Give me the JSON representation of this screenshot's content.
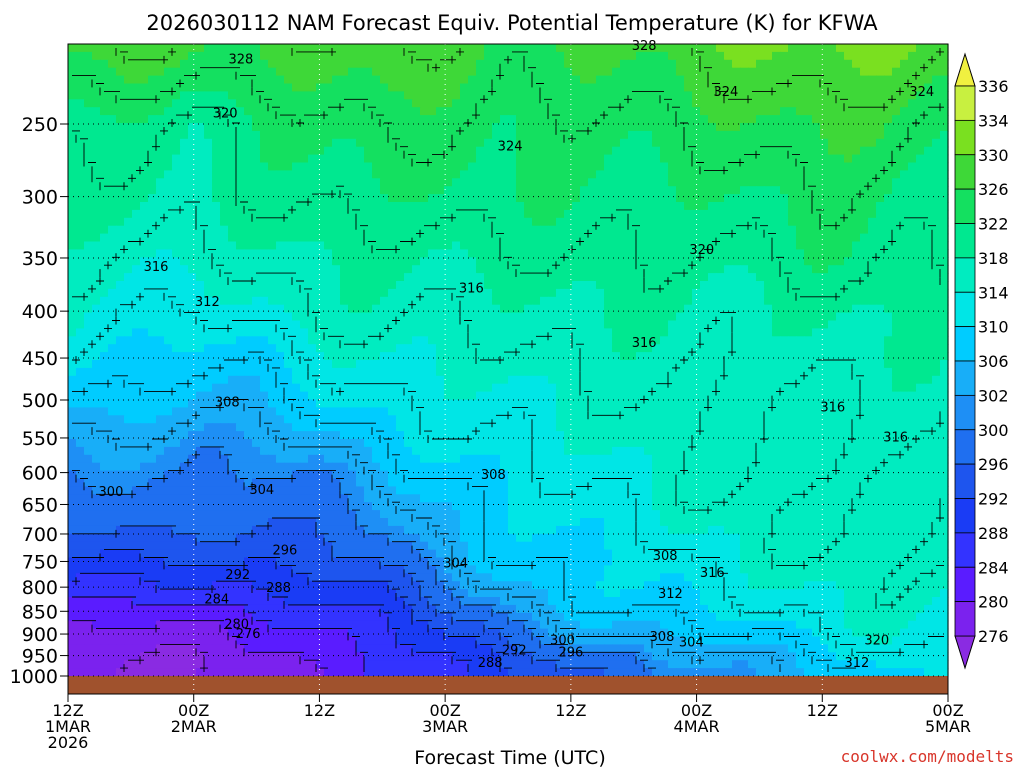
{
  "title": "2026030112 NAM Forecast Equiv. Potential Temperature (K) for KFWA",
  "xlabel": "Forecast Time (UTC)",
  "watermark": "coolwx.com/modelts",
  "chart_data": {
    "type": "heatmap",
    "title": "2026030112 NAM Forecast Equiv. Potential Temperature (K) for KFWA",
    "xlabel": "Forecast Time (UTC)",
    "ylabel": "",
    "units": "K",
    "x_ticks": [
      {
        "hour": 0,
        "line1": "12Z",
        "line2": "1MAR",
        "line3": "2026"
      },
      {
        "hour": 12,
        "line1": "00Z",
        "line2": "2MAR",
        "line3": ""
      },
      {
        "hour": 24,
        "line1": "12Z",
        "line2": "",
        "line3": ""
      },
      {
        "hour": 36,
        "line1": "00Z",
        "line2": "3MAR",
        "line3": ""
      },
      {
        "hour": 48,
        "line1": "12Z",
        "line2": "",
        "line3": ""
      },
      {
        "hour": 60,
        "line1": "00Z",
        "line2": "4MAR",
        "line3": ""
      },
      {
        "hour": 72,
        "line1": "12Z",
        "line2": "",
        "line3": ""
      },
      {
        "hour": 84,
        "line1": "00Z",
        "line2": "5MAR",
        "line3": ""
      }
    ],
    "y_ticks": [
      "250",
      "300",
      "350",
      "400",
      "450",
      "500",
      "550",
      "600",
      "650",
      "700",
      "750",
      "800",
      "850",
      "900",
      "950",
      "1000"
    ],
    "y_tick_values": [
      250,
      300,
      350,
      400,
      450,
      500,
      550,
      600,
      650,
      700,
      750,
      800,
      850,
      900,
      950,
      1000
    ],
    "ylim": [
      1000,
      200
    ],
    "xlim": [
      0,
      84
    ],
    "y_scale": "log-pressure",
    "grid": true,
    "colorbar": {
      "levels": [
        276,
        280,
        284,
        288,
        292,
        296,
        300,
        302,
        306,
        310,
        314,
        318,
        322,
        326,
        330,
        334,
        336
      ],
      "labels": [
        "276",
        "280",
        "284",
        "288",
        "292",
        "296",
        "300",
        "302",
        "306",
        "310",
        "314",
        "318",
        "322",
        "326",
        "330",
        "334",
        "336"
      ],
      "colors": [
        "#8a2be2",
        "#7b22ee",
        "#5a1cff",
        "#3333ff",
        "#1a3cf5",
        "#1e55ee",
        "#1f6ff0",
        "#1e8ff5",
        "#18aef8",
        "#00ccff",
        "#00e6e6",
        "#00ecc0",
        "#00e890",
        "#14e060",
        "#3ed838",
        "#7ae020",
        "#c8f040",
        "#f0f040"
      ]
    },
    "contour_levels_labeled": [
      "276",
      "280",
      "284",
      "288",
      "292",
      "296",
      "300",
      "304",
      "308",
      "312",
      "316",
      "320",
      "324",
      "328"
    ],
    "field_rows": [
      {
        "pressure": 200,
        "theta_e": [
          329,
          329,
          327,
          327,
          329,
          330,
          327,
          325,
          327,
          328,
          329,
          330,
          331,
          332,
          330
        ]
      },
      {
        "pressure": 250,
        "theta_e": [
          322,
          321,
          318,
          321,
          324,
          325,
          324,
          322,
          323,
          324,
          325,
          325,
          326,
          326,
          324
        ]
      },
      {
        "pressure": 300,
        "theta_e": [
          320,
          319,
          317,
          319,
          321,
          322,
          322,
          321,
          321,
          322,
          322,
          322,
          323,
          322,
          322
        ]
      },
      {
        "pressure": 350,
        "theta_e": [
          317,
          316,
          315,
          316,
          318,
          319,
          319,
          319,
          319,
          320,
          320,
          320,
          321,
          320,
          320
        ]
      },
      {
        "pressure": 400,
        "theta_e": [
          314,
          313,
          312,
          313,
          316,
          317,
          317,
          317,
          317,
          318,
          318,
          318,
          318,
          318,
          318
        ]
      },
      {
        "pressure": 450,
        "theta_e": [
          311,
          310,
          309,
          309,
          312,
          314,
          315,
          316,
          316,
          316,
          317,
          317,
          317,
          317,
          317
        ]
      },
      {
        "pressure": 500,
        "theta_e": [
          307,
          307,
          306,
          306,
          309,
          311,
          313,
          314,
          315,
          315,
          316,
          316,
          316,
          316,
          316
        ]
      },
      {
        "pressure": 550,
        "theta_e": [
          303,
          303,
          302,
          303,
          305,
          308,
          311,
          313,
          314,
          315,
          315,
          316,
          316,
          316,
          316
        ]
      },
      {
        "pressure": 600,
        "theta_e": [
          300,
          300,
          300,
          300,
          301,
          305,
          308,
          311,
          313,
          314,
          315,
          316,
          316,
          316,
          316
        ]
      },
      {
        "pressure": 650,
        "theta_e": [
          298,
          298,
          298,
          298,
          299,
          302,
          306,
          309,
          312,
          313,
          315,
          316,
          316,
          316,
          316
        ]
      },
      {
        "pressure": 700,
        "theta_e": [
          296,
          296,
          295,
          295,
          297,
          300,
          305,
          308,
          311,
          312,
          314,
          315,
          316,
          316,
          316
        ]
      },
      {
        "pressure": 750,
        "theta_e": [
          292,
          292,
          291,
          292,
          294,
          297,
          303,
          307,
          309,
          310,
          313,
          314,
          315,
          316,
          316
        ]
      },
      {
        "pressure": 800,
        "theta_e": [
          287,
          287,
          287,
          288,
          290,
          293,
          300,
          305,
          308,
          310,
          312,
          313,
          314,
          315,
          315
        ]
      },
      {
        "pressure": 850,
        "theta_e": [
          283,
          282,
          283,
          284,
          286,
          289,
          296,
          302,
          306,
          308,
          310,
          312,
          313,
          314,
          314
        ]
      },
      {
        "pressure": 900,
        "theta_e": [
          279,
          278,
          279,
          281,
          283,
          286,
          292,
          298,
          302,
          305,
          307,
          309,
          311,
          314,
          313
        ]
      },
      {
        "pressure": 950,
        "theta_e": [
          276,
          276,
          277,
          279,
          281,
          284,
          289,
          294,
          298,
          300,
          303,
          305,
          308,
          312,
          310
        ]
      },
      {
        "pressure": 1000,
        "theta_e": [
          275,
          275,
          276,
          278,
          280,
          283,
          287,
          291,
          295,
          297,
          300,
          303,
          306,
          310,
          308
        ]
      }
    ],
    "field_hours": [
      0,
      6,
      12,
      18,
      24,
      30,
      36,
      42,
      48,
      54,
      60,
      66,
      72,
      78,
      84
    ],
    "ground_color": "#a0522d",
    "contour_labels": [
      {
        "text": "328",
        "hour": 16.5,
        "pressure": 212
      },
      {
        "text": "328",
        "hour": 55,
        "pressure": 205
      },
      {
        "text": "324",
        "hour": 62.8,
        "pressure": 230
      },
      {
        "text": "324",
        "hour": 81.5,
        "pressure": 230
      },
      {
        "text": "320",
        "hour": 15,
        "pressure": 243
      },
      {
        "text": "324",
        "hour": 42.2,
        "pressure": 264
      },
      {
        "text": "320",
        "hour": 60.5,
        "pressure": 342
      },
      {
        "text": "316",
        "hour": 8.4,
        "pressure": 357
      },
      {
        "text": "316",
        "hour": 38.5,
        "pressure": 377
      },
      {
        "text": "312",
        "hour": 13.3,
        "pressure": 390
      },
      {
        "text": "316",
        "hour": 55,
        "pressure": 432
      },
      {
        "text": "308",
        "hour": 15.2,
        "pressure": 502
      },
      {
        "text": "316",
        "hour": 73,
        "pressure": 508
      },
      {
        "text": "316",
        "hour": 79,
        "pressure": 548
      },
      {
        "text": "300",
        "hour": 4.1,
        "pressure": 628
      },
      {
        "text": "304",
        "hour": 18.5,
        "pressure": 625
      },
      {
        "text": "308",
        "hour": 40.6,
        "pressure": 602
      },
      {
        "text": "296",
        "hour": 20.7,
        "pressure": 728
      },
      {
        "text": "304",
        "hour": 37,
        "pressure": 752
      },
      {
        "text": "308",
        "hour": 57,
        "pressure": 738
      },
      {
        "text": "316",
        "hour": 61.5,
        "pressure": 770
      },
      {
        "text": "292",
        "hour": 16.2,
        "pressure": 774
      },
      {
        "text": "288",
        "hour": 20.1,
        "pressure": 800
      },
      {
        "text": "312",
        "hour": 57.5,
        "pressure": 812
      },
      {
        "text": "284",
        "hour": 14.2,
        "pressure": 823
      },
      {
        "text": "280",
        "hour": 16.1,
        "pressure": 876
      },
      {
        "text": "276",
        "hour": 17.2,
        "pressure": 898
      },
      {
        "text": "300",
        "hour": 47.2,
        "pressure": 912
      },
      {
        "text": "308",
        "hour": 56.7,
        "pressure": 904
      },
      {
        "text": "304",
        "hour": 59.5,
        "pressure": 917
      },
      {
        "text": "320",
        "hour": 77.2,
        "pressure": 912
      },
      {
        "text": "292",
        "hour": 42.6,
        "pressure": 936
      },
      {
        "text": "296",
        "hour": 48,
        "pressure": 940
      },
      {
        "text": "288",
        "hour": 40.3,
        "pressure": 966
      },
      {
        "text": "312",
        "hour": 75.3,
        "pressure": 966
      }
    ]
  }
}
